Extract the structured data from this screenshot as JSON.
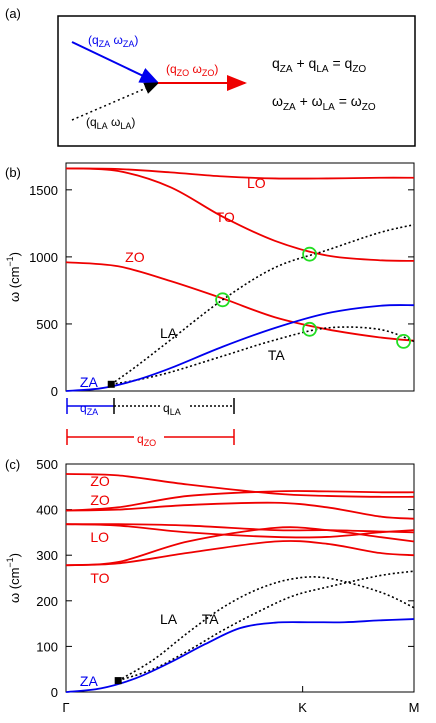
{
  "panel_a": {
    "label": "(a)",
    "za_label": "(q",
    "za_label_sub1": "ZA",
    "za_label_mid": " ω",
    "za_label_sub2": "ZA",
    "za_label_end": ")",
    "la_label": "(q",
    "la_label_sub1": "LA",
    "la_label_mid": " ω",
    "la_label_sub2": "LA",
    "la_label_end": ")",
    "zo_label": "(q",
    "zo_label_sub1": "ZO",
    "zo_label_mid": " ω",
    "zo_label_sub2": "ZO",
    "zo_label_end": ")",
    "eq1": {
      "t1": "q",
      "s1": "ZA",
      "t2": " + q",
      "s2": "LA",
      "t3": " = q",
      "s3": "ZO"
    },
    "eq2": {
      "t1": "ω",
      "s1": "ZA",
      "t2": " + ω",
      "s2": "LA",
      "t3": " = ω",
      "s3": "ZO"
    },
    "colors": {
      "za": "#0000ee",
      "zo": "#ee0000",
      "la": "#000000"
    }
  },
  "chart_data": [
    {
      "type": "line",
      "panel": "(b)",
      "ylabel": "ω (cm⁻¹)",
      "ylim": [
        0,
        1700
      ],
      "yticks": [
        0,
        500,
        1000,
        1500
      ],
      "xlim": [
        0,
        1
      ],
      "series": [
        {
          "name": "LO",
          "color": "#ee0000",
          "style": "solid",
          "x": [
            0,
            0.15,
            0.3,
            0.45,
            0.6,
            0.75,
            0.9,
            1.0
          ],
          "y": [
            1660,
            1655,
            1630,
            1600,
            1585,
            1585,
            1590,
            1590
          ]
        },
        {
          "name": "TO",
          "color": "#ee0000",
          "style": "solid",
          "x": [
            0,
            0.15,
            0.3,
            0.45,
            0.6,
            0.75,
            0.9,
            1.0
          ],
          "y": [
            1660,
            1640,
            1520,
            1300,
            1120,
            1010,
            975,
            970
          ]
        },
        {
          "name": "ZO",
          "color": "#ee0000",
          "style": "solid",
          "x": [
            0,
            0.15,
            0.3,
            0.45,
            0.6,
            0.75,
            0.9,
            1.0
          ],
          "y": [
            960,
            930,
            820,
            690,
            550,
            460,
            400,
            375
          ]
        },
        {
          "name": "LA",
          "color": "#000000",
          "style": "dotted",
          "x": [
            0.13,
            0.2,
            0.3,
            0.45,
            0.6,
            0.75,
            0.9,
            1.0
          ],
          "y": [
            50,
            180,
            380,
            680,
            920,
            1050,
            1180,
            1240
          ]
        },
        {
          "name": "TA",
          "color": "#000000",
          "style": "dotted",
          "x": [
            0.13,
            0.2,
            0.3,
            0.45,
            0.6,
            0.75,
            0.9,
            1.0
          ],
          "y": [
            50,
            80,
            140,
            260,
            380,
            470,
            460,
            370
          ]
        },
        {
          "name": "ZA",
          "color": "#0000ee",
          "style": "solid",
          "x": [
            0,
            0.1,
            0.2,
            0.3,
            0.45,
            0.6,
            0.75,
            0.9,
            1.0
          ],
          "y": [
            0,
            20,
            80,
            170,
            330,
            470,
            580,
            635,
            640
          ]
        }
      ],
      "labels": [
        {
          "text": "LO",
          "color": "#ee0000"
        },
        {
          "text": "TO",
          "color": "#ee0000"
        },
        {
          "text": "ZO",
          "color": "#ee0000"
        },
        {
          "text": "LA",
          "color": "#000000"
        },
        {
          "text": "TA",
          "color": "#000000"
        },
        {
          "text": "ZA",
          "color": "#0000ee"
        }
      ],
      "markers": [
        {
          "type": "circle",
          "x": 0.45,
          "y": 680
        },
        {
          "type": "circle",
          "x": 0.7,
          "y": 1020
        },
        {
          "type": "circle",
          "x": 0.7,
          "y": 460
        },
        {
          "type": "circle",
          "x": 0.97,
          "y": 370
        },
        {
          "type": "square",
          "x": 0.13,
          "y": 50
        }
      ],
      "q_labels": {
        "za": "q",
        "za_sub": "ZA",
        "la": "q",
        "la_sub": "LA",
        "zo": "q",
        "zo_sub": "ZO"
      }
    },
    {
      "type": "line",
      "panel": "(c)",
      "ylabel": "ω (cm⁻¹)",
      "ylim": [
        0,
        500
      ],
      "yticks": [
        0,
        100,
        200,
        300,
        400,
        500
      ],
      "xticks": [
        "Γ",
        "K",
        "M"
      ],
      "series": [
        {
          "name": "ZO-1",
          "color": "#ee0000",
          "style": "solid",
          "x": [
            0,
            0.15,
            0.35,
            0.6,
            0.75,
            0.9,
            1.0
          ],
          "y": [
            478,
            475,
            455,
            435,
            430,
            428,
            428
          ]
        },
        {
          "name": "ZO-2",
          "color": "#ee0000",
          "style": "solid",
          "x": [
            0,
            0.15,
            0.35,
            0.6,
            0.75,
            0.9,
            1.0
          ],
          "y": [
            398,
            405,
            430,
            440,
            440,
            438,
            438
          ]
        },
        {
          "name": "upper-3",
          "color": "#ee0000",
          "style": "solid",
          "x": [
            0,
            0.15,
            0.35,
            0.6,
            0.75,
            0.9,
            1.0
          ],
          "y": [
            398,
            400,
            410,
            415,
            405,
            385,
            380
          ]
        },
        {
          "name": "LO-1",
          "color": "#ee0000",
          "style": "solid",
          "x": [
            0,
            0.15,
            0.35,
            0.6,
            0.75,
            0.9,
            1.0
          ],
          "y": [
            368,
            365,
            350,
            340,
            340,
            350,
            355
          ]
        },
        {
          "name": "LO-2",
          "color": "#ee0000",
          "style": "solid",
          "x": [
            0,
            0.15,
            0.35,
            0.6,
            0.75,
            0.9,
            1.0
          ],
          "y": [
            368,
            368,
            365,
            355,
            355,
            352,
            350
          ]
        },
        {
          "name": "mid-1",
          "color": "#ee0000",
          "style": "solid",
          "x": [
            0,
            0.15,
            0.35,
            0.6,
            0.75,
            0.9,
            1.0
          ],
          "y": [
            278,
            285,
            330,
            360,
            355,
            340,
            330
          ]
        },
        {
          "name": "TO-1",
          "color": "#ee0000",
          "style": "solid",
          "x": [
            0,
            0.15,
            0.35,
            0.6,
            0.75,
            0.9,
            1.0
          ],
          "y": [
            278,
            282,
            305,
            330,
            325,
            305,
            300
          ]
        },
        {
          "name": "LA",
          "color": "#000000",
          "style": "dotted",
          "x": [
            0.15,
            0.25,
            0.35,
            0.45,
            0.55,
            0.65,
            0.75,
            0.9,
            1.0
          ],
          "y": [
            25,
            70,
            130,
            185,
            225,
            248,
            250,
            220,
            185
          ]
        },
        {
          "name": "TA",
          "color": "#000000",
          "style": "dotted",
          "x": [
            0.15,
            0.25,
            0.35,
            0.45,
            0.55,
            0.65,
            0.75,
            0.9,
            1.0
          ],
          "y": [
            25,
            50,
            90,
            135,
            175,
            210,
            230,
            255,
            265
          ]
        },
        {
          "name": "ZA",
          "color": "#0000ee",
          "style": "solid",
          "x": [
            0,
            0.1,
            0.2,
            0.3,
            0.4,
            0.5,
            0.6,
            0.7,
            0.8,
            0.9,
            1.0
          ],
          "y": [
            0,
            8,
            30,
            65,
            105,
            140,
            152,
            153,
            153,
            157,
            160
          ]
        }
      ],
      "labels": [
        {
          "text": "ZO",
          "color": "#ee0000"
        },
        {
          "text": "ZO",
          "color": "#ee0000"
        },
        {
          "text": "LO",
          "color": "#ee0000"
        },
        {
          "text": "TO",
          "color": "#ee0000"
        },
        {
          "text": "LA",
          "color": "#000000"
        },
        {
          "text": "TA",
          "color": "#000000"
        },
        {
          "text": "ZA",
          "color": "#0000ee"
        }
      ],
      "markers": [
        {
          "type": "square",
          "x": 0.15,
          "y": 25
        }
      ]
    }
  ],
  "panel_b_label": "(b)",
  "panel_c_label": "(c)"
}
